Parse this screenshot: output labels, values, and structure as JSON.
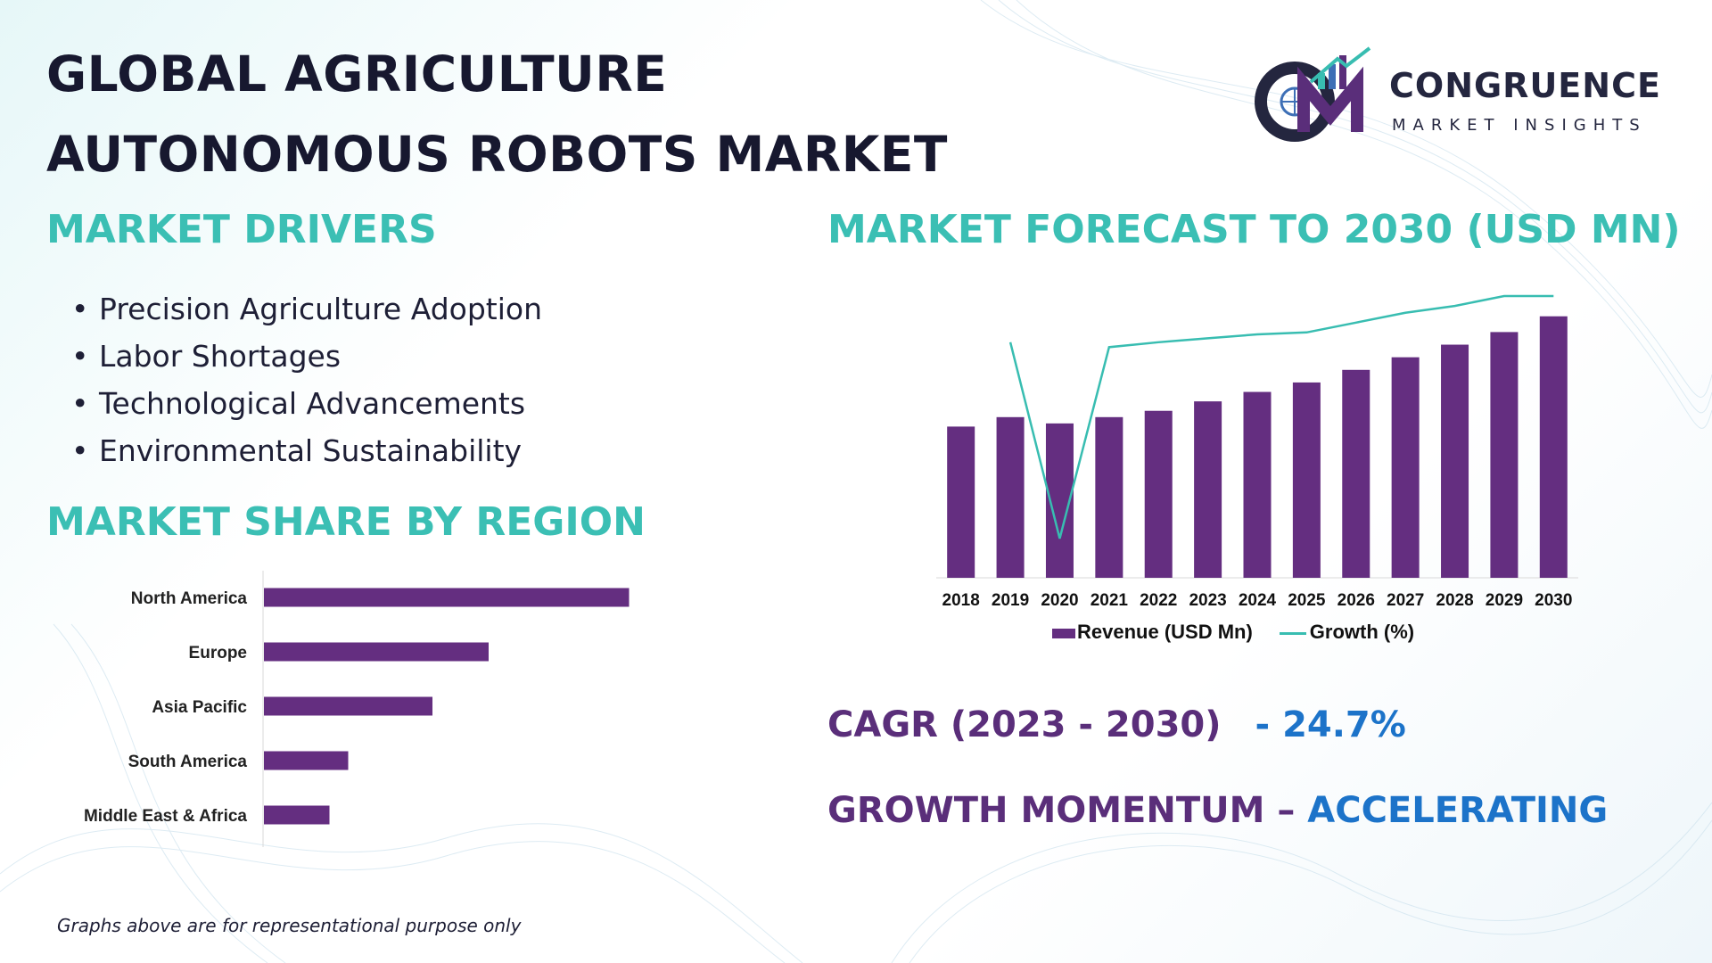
{
  "title": {
    "line1": "GLOBAL AGRICULTURE",
    "line2": "AUTONOMOUS ROBOTS MARKET"
  },
  "logo": {
    "name": "CONGRUENCE",
    "subtitle": "MARKET INSIGHTS"
  },
  "drivers": {
    "heading": "MARKET DRIVERS",
    "items": [
      "Precision Agriculture Adoption",
      "Labor Shortages",
      "Technological Advancements",
      "Environmental Sustainability"
    ]
  },
  "region": {
    "heading": "MARKET SHARE BY REGION"
  },
  "forecast": {
    "heading": "MARKET FORECAST TO 2030 (USD MN)"
  },
  "stats": {
    "cagr_label": "CAGR (2023 - 2030)",
    "cagr_value": "- 24.7%",
    "momentum_label": "GROWTH MOMENTUM –",
    "momentum_value": "ACCELERATING"
  },
  "footnote": "Graphs above are for representational purpose only",
  "colors": {
    "bar": "#642e80",
    "line": "#38bdb1",
    "heading": "#3bbfb4",
    "accent_blue": "#1c73c9",
    "accent_purple": "#5a2e7a"
  },
  "chart_data": [
    {
      "type": "bar",
      "orientation": "horizontal",
      "categories": [
        "North America",
        "Europe",
        "Asia Pacific",
        "South America",
        "Middle East & Africa"
      ],
      "values": [
        39,
        24,
        18,
        9,
        7
      ],
      "xlim": [
        0,
        40
      ],
      "grid": false
    },
    {
      "type": "bar",
      "categories": [
        "2018",
        "2019",
        "2020",
        "2021",
        "2022",
        "2023",
        "2024",
        "2025",
        "2026",
        "2027",
        "2028",
        "2029",
        "2030"
      ],
      "series": [
        {
          "name": "Revenue (USD Mn)",
          "type": "bar",
          "values": [
            48,
            51,
            49,
            51,
            53,
            56,
            59,
            62,
            66,
            70,
            74,
            78,
            83
          ]
        },
        {
          "name": "Growth (%)",
          "type": "line",
          "values": [
            null,
            14,
            -6,
            13.5,
            14,
            14.4,
            14.8,
            15,
            16,
            17,
            17.7,
            19,
            19.6
          ]
        }
      ],
      "ylim": [
        0,
        90
      ],
      "y2lim": [
        -10,
        16
      ],
      "legend": "bottom",
      "grid": false
    }
  ]
}
